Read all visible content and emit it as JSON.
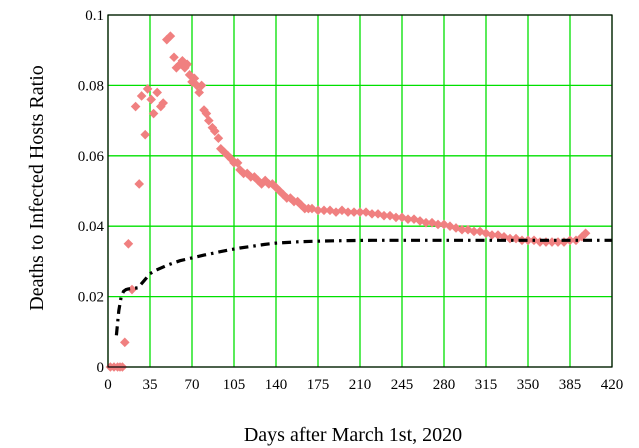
{
  "chart_data": {
    "type": "scatter",
    "xlabel": "Days after March 1st, 2020",
    "ylabel": "Deaths to Infected Hosts Ratio",
    "xlim": [
      0,
      420
    ],
    "ylim": [
      0,
      0.1
    ],
    "x_ticks": [
      "0",
      "35",
      "70",
      "105",
      "140",
      "175",
      "210",
      "245",
      "280",
      "315",
      "350",
      "385",
      "420"
    ],
    "y_ticks": [
      "0",
      "0.02",
      "0.04",
      "0.06",
      "0.08",
      "0.1"
    ],
    "grid": true,
    "grid_color": "#00e000",
    "series": [
      {
        "style": "markers",
        "marker": "diamond",
        "color": "#f08080",
        "x": [
          2,
          5,
          8,
          10,
          12,
          14,
          17,
          20,
          23,
          26,
          28,
          31,
          33,
          36,
          38,
          41,
          44,
          46,
          49,
          52,
          55,
          57,
          60,
          62,
          64,
          66,
          68,
          70,
          72,
          74,
          76,
          78,
          80,
          82,
          84,
          87,
          89,
          92,
          94,
          97,
          100,
          103,
          105,
          108,
          110,
          113,
          116,
          119,
          122,
          125,
          128,
          131,
          134,
          137,
          140,
          143,
          146,
          149,
          152,
          155,
          158,
          161,
          164,
          167,
          170,
          175,
          180,
          185,
          190,
          195,
          200,
          205,
          210,
          215,
          220,
          225,
          230,
          235,
          240,
          245,
          250,
          255,
          260,
          265,
          270,
          275,
          280,
          285,
          290,
          295,
          300,
          305,
          310,
          315,
          320,
          325,
          330,
          335,
          340,
          345,
          350,
          355,
          360,
          365,
          370,
          375,
          380,
          385,
          390,
          395,
          398
        ],
        "y": [
          0.0,
          0.0,
          0.0,
          0.0,
          0.0,
          0.007,
          0.035,
          0.022,
          0.074,
          0.052,
          0.077,
          0.066,
          0.079,
          0.076,
          0.072,
          0.078,
          0.074,
          0.075,
          0.093,
          0.094,
          0.088,
          0.085,
          0.086,
          0.087,
          0.085,
          0.086,
          0.083,
          0.081,
          0.082,
          0.08,
          0.078,
          0.08,
          0.073,
          0.072,
          0.07,
          0.068,
          0.067,
          0.065,
          0.062,
          0.061,
          0.06,
          0.059,
          0.058,
          0.058,
          0.056,
          0.055,
          0.055,
          0.054,
          0.054,
          0.053,
          0.052,
          0.053,
          0.052,
          0.052,
          0.051,
          0.05,
          0.049,
          0.048,
          0.048,
          0.047,
          0.047,
          0.046,
          0.045,
          0.045,
          0.045,
          0.0445,
          0.0445,
          0.0445,
          0.044,
          0.0445,
          0.044,
          0.044,
          0.044,
          0.044,
          0.0435,
          0.0435,
          0.043,
          0.043,
          0.0425,
          0.0425,
          0.042,
          0.042,
          0.0415,
          0.041,
          0.041,
          0.0405,
          0.0405,
          0.04,
          0.0395,
          0.039,
          0.039,
          0.0385,
          0.0385,
          0.038,
          0.0375,
          0.0375,
          0.037,
          0.0365,
          0.0365,
          0.036,
          0.036,
          0.036,
          0.0355,
          0.0355,
          0.0355,
          0.0355,
          0.0355,
          0.036,
          0.036,
          0.037,
          0.038
        ]
      },
      {
        "style": "dash-dot",
        "color": "#000000",
        "x": [
          7,
          9,
          11,
          13,
          15,
          17,
          20,
          25,
          30,
          35,
          40,
          50,
          60,
          70,
          80,
          90,
          100,
          110,
          120,
          130,
          140,
          160,
          180,
          200,
          220,
          240,
          260,
          280,
          300,
          320,
          340,
          360,
          380,
          400,
          420
        ],
        "y": [
          0.009,
          0.016,
          0.02,
          0.0215,
          0.022,
          0.0222,
          0.0223,
          0.0225,
          0.0245,
          0.0265,
          0.0275,
          0.029,
          0.0302,
          0.031,
          0.0318,
          0.0325,
          0.0332,
          0.0338,
          0.0343,
          0.0348,
          0.0352,
          0.0356,
          0.0358,
          0.0359,
          0.036,
          0.036,
          0.036,
          0.036,
          0.036,
          0.036,
          0.036,
          0.036,
          0.036,
          0.036,
          0.036
        ]
      }
    ]
  }
}
